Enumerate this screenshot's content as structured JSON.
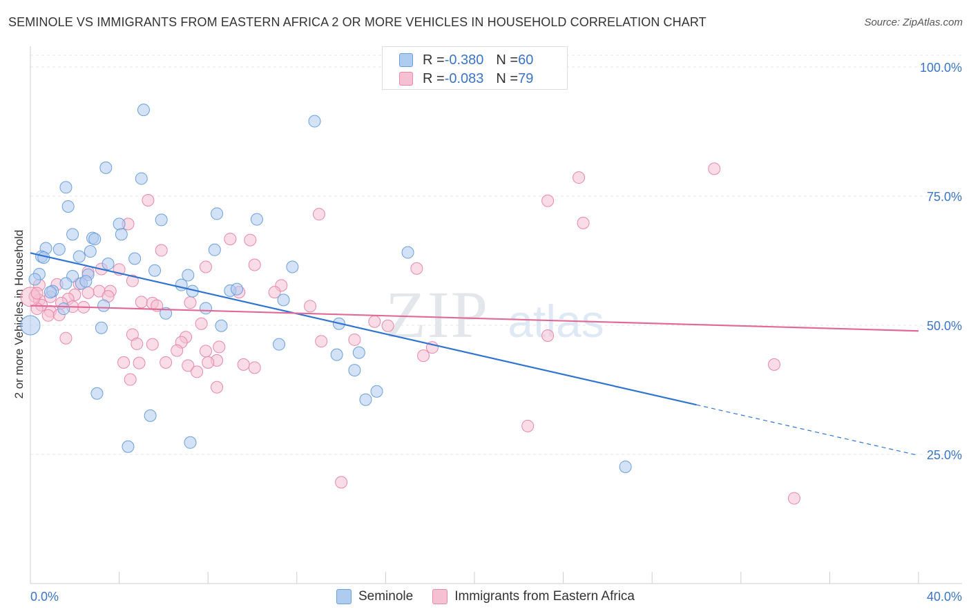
{
  "header": {
    "title": "SEMINOLE VS IMMIGRANTS FROM EASTERN AFRICA 2 OR MORE VEHICLES IN HOUSEHOLD CORRELATION CHART",
    "source": "Source: ZipAtlas.com"
  },
  "watermark": {
    "zip": "ZIP",
    "atlas": "atlas"
  },
  "stats": [
    {
      "r_label": "R = ",
      "r_value": "-0.380",
      "n_label": "N = ",
      "n_value": "60"
    },
    {
      "r_label": "R = ",
      "r_value": "-0.083",
      "n_label": "N = ",
      "n_value": "79"
    }
  ],
  "legend": {
    "series1": "Seminole",
    "series2": "Immigrants from Eastern Africa"
  },
  "axis": {
    "ylabel": "2 or more Vehicles in Household",
    "x_min_label": "0.0%",
    "x_max_label": "40.0%",
    "y_ticks": [
      "100.0%",
      "75.0%",
      "50.0%",
      "25.0%"
    ]
  },
  "colors": {
    "blue_fill": "#aecbf0",
    "blue_stroke": "#6a9fdc",
    "blue_line": "#2f74d0",
    "pink_fill": "#f5c0d1",
    "pink_stroke": "#e888a8",
    "pink_line": "#e06a96",
    "tick_label": "#3b74c4"
  },
  "chart_data": {
    "type": "scatter",
    "xlim": [
      0,
      40
    ],
    "ylim": [
      0,
      100
    ],
    "grid": true,
    "legend_position": "bottom-center",
    "series": [
      {
        "name": "Seminole",
        "r": -0.38,
        "n": 60,
        "trend": {
          "x0": 0,
          "y0": 64.0,
          "x1": 30.0,
          "y1": 34.6,
          "dash_to_x": 40,
          "dash_to_y": 24.8
        },
        "points": [
          [
            5.1,
            91.7
          ],
          [
            12.8,
            89.5
          ],
          [
            3.4,
            80.5
          ],
          [
            5.0,
            78.4
          ],
          [
            1.6,
            76.7
          ],
          [
            1.7,
            73.0
          ],
          [
            8.4,
            71.6
          ],
          [
            4.0,
            69.6
          ],
          [
            5.9,
            70.4
          ],
          [
            10.2,
            70.5
          ],
          [
            1.9,
            67.6
          ],
          [
            4.1,
            67.6
          ],
          [
            2.8,
            66.9
          ],
          [
            2.9,
            66.7
          ],
          [
            0.7,
            64.9
          ],
          [
            1.3,
            64.7
          ],
          [
            2.7,
            64.3
          ],
          [
            8.3,
            64.6
          ],
          [
            0.5,
            63.3
          ],
          [
            0.6,
            63.1
          ],
          [
            2.2,
            63.3
          ],
          [
            4.7,
            62.9
          ],
          [
            17.0,
            64.1
          ],
          [
            3.5,
            61.9
          ],
          [
            11.8,
            61.3
          ],
          [
            5.6,
            60.6
          ],
          [
            0.4,
            59.9
          ],
          [
            1.9,
            59.5
          ],
          [
            2.6,
            59.8
          ],
          [
            7.1,
            59.7
          ],
          [
            0.2,
            58.9
          ],
          [
            1.6,
            58.1
          ],
          [
            2.3,
            58.1
          ],
          [
            2.5,
            58.5
          ],
          [
            6.8,
            57.8
          ],
          [
            1.0,
            56.6
          ],
          [
            0.9,
            56.4
          ],
          [
            7.3,
            56.6
          ],
          [
            9.0,
            56.7
          ],
          [
            9.3,
            57.0
          ],
          [
            11.4,
            54.9
          ],
          [
            3.3,
            53.8
          ],
          [
            1.5,
            53.2
          ],
          [
            7.9,
            53.3
          ],
          [
            6.1,
            52.3
          ],
          [
            13.9,
            50.3
          ],
          [
            8.6,
            49.9
          ],
          [
            3.2,
            49.5
          ],
          [
            11.2,
            46.3
          ],
          [
            14.8,
            44.7
          ],
          [
            13.8,
            44.3
          ],
          [
            14.6,
            41.3
          ],
          [
            15.6,
            37.2
          ],
          [
            3.0,
            36.8
          ],
          [
            15.1,
            35.6
          ],
          [
            5.4,
            32.5
          ],
          [
            7.2,
            27.3
          ],
          [
            4.4,
            26.5
          ],
          [
            26.8,
            22.6
          ],
          [
            0.0,
            50.0
          ]
        ]
      },
      {
        "name": "Immigrants from Eastern Africa",
        "r": -0.083,
        "n": 79,
        "trend": {
          "x0": 0,
          "y0": 53.8,
          "x1": 40,
          "y1": 48.9
        },
        "points": [
          [
            30.8,
            80.3
          ],
          [
            24.7,
            78.6
          ],
          [
            23.3,
            74.1
          ],
          [
            5.3,
            74.2
          ],
          [
            13.0,
            71.5
          ],
          [
            4.4,
            69.6
          ],
          [
            24.9,
            69.8
          ],
          [
            9.0,
            66.7
          ],
          [
            9.9,
            66.5
          ],
          [
            5.9,
            64.5
          ],
          [
            7.9,
            61.3
          ],
          [
            10.1,
            61.7
          ],
          [
            17.4,
            61.0
          ],
          [
            4.0,
            60.8
          ],
          [
            3.2,
            60.9
          ],
          [
            2.6,
            60.3
          ],
          [
            4.6,
            58.6
          ],
          [
            11.3,
            57.7
          ],
          [
            0.4,
            57.8
          ],
          [
            1.2,
            57.9
          ],
          [
            2.2,
            58.0
          ],
          [
            3.1,
            56.6
          ],
          [
            3.6,
            56.6
          ],
          [
            2.6,
            56.3
          ],
          [
            9.4,
            56.4
          ],
          [
            11.0,
            56.4
          ],
          [
            0.2,
            55.6
          ],
          [
            0.9,
            55.5
          ],
          [
            2.0,
            55.9
          ],
          [
            0.4,
            54.9
          ],
          [
            1.7,
            55.1
          ],
          [
            3.5,
            55.6
          ],
          [
            5.0,
            54.5
          ],
          [
            5.5,
            54.3
          ],
          [
            7.2,
            54.4
          ],
          [
            0.5,
            53.9
          ],
          [
            1.9,
            53.6
          ],
          [
            0.3,
            53.2
          ],
          [
            2.4,
            53.5
          ],
          [
            5.7,
            53.8
          ],
          [
            12.6,
            53.7
          ],
          [
            0.9,
            52.7
          ],
          [
            0.8,
            51.9
          ],
          [
            1.3,
            52.0
          ],
          [
            15.5,
            50.7
          ],
          [
            7.7,
            50.3
          ],
          [
            16.1,
            49.9
          ],
          [
            4.6,
            48.2
          ],
          [
            1.6,
            47.5
          ],
          [
            7.0,
            47.7
          ],
          [
            6.8,
            46.7
          ],
          [
            13.1,
            46.9
          ],
          [
            14.6,
            47.2
          ],
          [
            23.3,
            48.0
          ],
          [
            4.8,
            46.4
          ],
          [
            5.5,
            46.3
          ],
          [
            8.5,
            45.8
          ],
          [
            18.1,
            45.7
          ],
          [
            7.9,
            45.0
          ],
          [
            6.6,
            45.1
          ],
          [
            17.7,
            44.1
          ],
          [
            4.2,
            42.8
          ],
          [
            4.9,
            42.7
          ],
          [
            6.1,
            42.8
          ],
          [
            7.1,
            42.2
          ],
          [
            8.4,
            43.2
          ],
          [
            8.0,
            42.8
          ],
          [
            9.6,
            42.4
          ],
          [
            10.1,
            41.8
          ],
          [
            7.5,
            41.0
          ],
          [
            4.5,
            39.5
          ],
          [
            8.4,
            38.0
          ],
          [
            33.5,
            42.4
          ],
          [
            22.4,
            30.5
          ],
          [
            14.0,
            19.6
          ],
          [
            34.4,
            16.5
          ],
          [
            0.0,
            55.5
          ],
          [
            0.3,
            56.2
          ],
          [
            1.4,
            54.3
          ]
        ]
      }
    ]
  }
}
